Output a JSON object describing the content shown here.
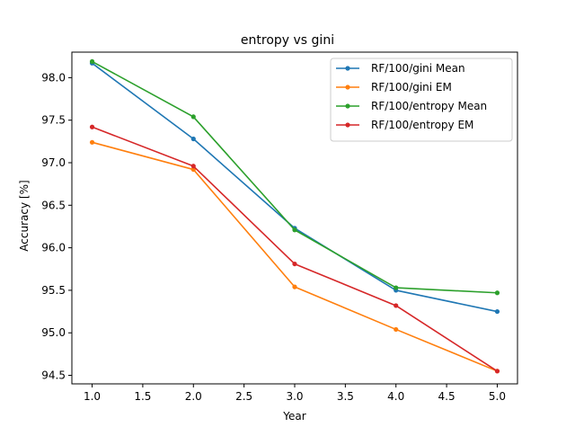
{
  "chart_data": {
    "type": "line",
    "title": "entropy vs gini",
    "xlabel": "Year",
    "ylabel": "Accuracy [%]",
    "xlim": [
      0.8,
      5.2
    ],
    "ylim": [
      94.4,
      98.3
    ],
    "xticks": [
      1.0,
      1.5,
      2.0,
      2.5,
      3.0,
      3.5,
      4.0,
      4.5,
      5.0
    ],
    "xtick_labels": [
      "1.0",
      "1.5",
      "2.0",
      "2.5",
      "3.0",
      "3.5",
      "4.0",
      "4.5",
      "5.0"
    ],
    "yticks": [
      94.5,
      95.0,
      95.5,
      96.0,
      96.5,
      97.0,
      97.5,
      98.0
    ],
    "ytick_labels": [
      "94.5",
      "95.0",
      "95.5",
      "96.0",
      "96.5",
      "97.0",
      "97.5",
      "98.0"
    ],
    "grid": false,
    "legend_position": "top-right",
    "x": [
      1,
      2,
      3,
      4,
      5
    ],
    "series": [
      {
        "name": "RF/100/gini Mean",
        "color": "#1f77b4",
        "values": [
          98.17,
          97.28,
          96.23,
          95.5,
          95.25
        ]
      },
      {
        "name": "RF/100/gini EM",
        "color": "#ff7f0e",
        "values": [
          97.24,
          96.92,
          95.54,
          95.04,
          94.55
        ]
      },
      {
        "name": "RF/100/entropy Mean",
        "color": "#2ca02c",
        "values": [
          98.19,
          97.54,
          96.21,
          95.53,
          95.47
        ]
      },
      {
        "name": "RF/100/entropy EM",
        "color": "#d62728",
        "values": [
          97.42,
          96.96,
          95.81,
          95.32,
          94.55
        ]
      }
    ]
  }
}
